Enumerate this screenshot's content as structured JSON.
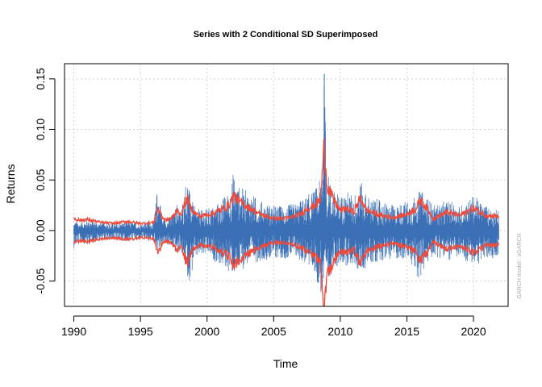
{
  "chart_data": {
    "type": "line",
    "title": "Series with 2 Conditional SD Superimposed",
    "xlabel": "Time",
    "ylabel": "Returns",
    "note": "GARCH model : sGARCH",
    "xlim": [
      1989.3,
      2022.6
    ],
    "ylim": [
      -0.075,
      0.165
    ],
    "x_ticks": [
      1990,
      1995,
      2000,
      2005,
      2010,
      2015,
      2020
    ],
    "x_tick_labels": [
      "1990",
      "1995",
      "2000",
      "2005",
      "2010",
      "2015",
      "2020"
    ],
    "y_ticks": [
      -0.05,
      0.0,
      0.05,
      0.1,
      0.15
    ],
    "y_tick_labels": [
      "-0.05",
      "0.00",
      "0.05",
      "0.10",
      "0.15"
    ],
    "grid": true,
    "x_range": [
      1990.0,
      2021.9
    ],
    "series": [
      {
        "role": "returns",
        "color": "#3b6fb6",
        "envelope": [
          [
            1990.0,
            0.01
          ],
          [
            1990.5,
            0.008
          ],
          [
            1991.0,
            0.012
          ],
          [
            1992.0,
            0.008
          ],
          [
            1993.0,
            0.007
          ],
          [
            1994.0,
            0.009
          ],
          [
            1995.0,
            0.007
          ],
          [
            1996.0,
            0.009
          ],
          [
            1996.3,
            0.047
          ],
          [
            1996.7,
            0.012
          ],
          [
            1997.0,
            0.012
          ],
          [
            1997.5,
            0.018
          ],
          [
            1997.8,
            0.03
          ],
          [
            1998.0,
            0.018
          ],
          [
            1998.5,
            0.058
          ],
          [
            1998.7,
            0.038
          ],
          [
            1999.0,
            0.025
          ],
          [
            1999.5,
            0.02
          ],
          [
            2000.0,
            0.022
          ],
          [
            2000.5,
            0.025
          ],
          [
            2001.0,
            0.03
          ],
          [
            2001.7,
            0.04
          ],
          [
            2002.0,
            0.061
          ],
          [
            2002.3,
            0.045
          ],
          [
            2003.0,
            0.04
          ],
          [
            2003.5,
            0.035
          ],
          [
            2004.0,
            0.03
          ],
          [
            2005.0,
            0.025
          ],
          [
            2006.0,
            0.025
          ],
          [
            2007.0,
            0.03
          ],
          [
            2007.5,
            0.035
          ],
          [
            2008.0,
            0.04
          ],
          [
            2008.5,
            0.05
          ],
          [
            2008.8,
            0.155
          ],
          [
            2009.0,
            0.06
          ],
          [
            2009.5,
            0.04
          ],
          [
            2010.0,
            0.035
          ],
          [
            2010.5,
            0.04
          ],
          [
            2011.0,
            0.035
          ],
          [
            2011.5,
            0.05
          ],
          [
            2012.0,
            0.035
          ],
          [
            2013.0,
            0.03
          ],
          [
            2014.0,
            0.025
          ],
          [
            2015.0,
            0.03
          ],
          [
            2015.7,
            0.035
          ],
          [
            2016.0,
            0.04
          ],
          [
            2016.5,
            0.035
          ],
          [
            2017.0,
            0.025
          ],
          [
            2018.0,
            0.03
          ],
          [
            2019.0,
            0.025
          ],
          [
            2020.0,
            0.035
          ],
          [
            2020.5,
            0.03
          ],
          [
            2021.0,
            0.025
          ],
          [
            2021.9,
            0.02
          ]
        ],
        "neg_envelope": [
          [
            1990.0,
            -0.018
          ],
          [
            1990.5,
            -0.012
          ],
          [
            1991.0,
            -0.014
          ],
          [
            1992.0,
            -0.01
          ],
          [
            1993.0,
            -0.009
          ],
          [
            1994.0,
            -0.011
          ],
          [
            1995.0,
            -0.009
          ],
          [
            1996.0,
            -0.012
          ],
          [
            1996.3,
            -0.02
          ],
          [
            1997.0,
            -0.014
          ],
          [
            1997.8,
            -0.025
          ],
          [
            1998.0,
            -0.02
          ],
          [
            1998.6,
            -0.05
          ],
          [
            1998.8,
            -0.05
          ],
          [
            1999.0,
            -0.03
          ],
          [
            2000.0,
            -0.025
          ],
          [
            2000.5,
            -0.03
          ],
          [
            2001.0,
            -0.035
          ],
          [
            2002.0,
            -0.045
          ],
          [
            2002.5,
            -0.04
          ],
          [
            2003.0,
            -0.035
          ],
          [
            2004.0,
            -0.03
          ],
          [
            2005.0,
            -0.028
          ],
          [
            2006.0,
            -0.028
          ],
          [
            2007.0,
            -0.03
          ],
          [
            2008.0,
            -0.04
          ],
          [
            2008.8,
            -0.075
          ],
          [
            2009.0,
            -0.05
          ],
          [
            2009.5,
            -0.04
          ],
          [
            2010.0,
            -0.035
          ],
          [
            2011.0,
            -0.035
          ],
          [
            2011.6,
            -0.045
          ],
          [
            2012.0,
            -0.035
          ],
          [
            2013.0,
            -0.03
          ],
          [
            2014.0,
            -0.028
          ],
          [
            2015.0,
            -0.03
          ],
          [
            2016.0,
            -0.05
          ],
          [
            2016.5,
            -0.035
          ],
          [
            2017.0,
            -0.025
          ],
          [
            2018.0,
            -0.03
          ],
          [
            2019.0,
            -0.028
          ],
          [
            2020.0,
            -0.035
          ],
          [
            2021.0,
            -0.03
          ],
          [
            2021.9,
            -0.025
          ]
        ]
      },
      {
        "role": "plus_minus_2_conditional_sd",
        "color": "#f04a3a",
        "values": [
          [
            1990.0,
            0.012
          ],
          [
            1990.5,
            0.01
          ],
          [
            1991.0,
            0.011
          ],
          [
            1992.0,
            0.008
          ],
          [
            1993.0,
            0.007
          ],
          [
            1994.0,
            0.009
          ],
          [
            1995.0,
            0.007
          ],
          [
            1996.0,
            0.008
          ],
          [
            1996.3,
            0.022
          ],
          [
            1996.7,
            0.012
          ],
          [
            1997.0,
            0.01
          ],
          [
            1997.5,
            0.014
          ],
          [
            1997.8,
            0.022
          ],
          [
            1998.0,
            0.014
          ],
          [
            1998.5,
            0.032
          ],
          [
            1998.7,
            0.025
          ],
          [
            1999.0,
            0.018
          ],
          [
            1999.5,
            0.014
          ],
          [
            2000.0,
            0.016
          ],
          [
            2000.5,
            0.017
          ],
          [
            2001.0,
            0.02
          ],
          [
            2001.7,
            0.026
          ],
          [
            2002.0,
            0.035
          ],
          [
            2002.3,
            0.03
          ],
          [
            2003.0,
            0.024
          ],
          [
            2003.5,
            0.02
          ],
          [
            2004.0,
            0.016
          ],
          [
            2005.0,
            0.012
          ],
          [
            2006.0,
            0.012
          ],
          [
            2007.0,
            0.016
          ],
          [
            2007.5,
            0.022
          ],
          [
            2008.0,
            0.024
          ],
          [
            2008.5,
            0.03
          ],
          [
            2008.8,
            0.084
          ],
          [
            2009.0,
            0.045
          ],
          [
            2009.5,
            0.03
          ],
          [
            2010.0,
            0.02
          ],
          [
            2010.5,
            0.022
          ],
          [
            2011.0,
            0.018
          ],
          [
            2011.5,
            0.032
          ],
          [
            2012.0,
            0.02
          ],
          [
            2013.0,
            0.015
          ],
          [
            2014.0,
            0.013
          ],
          [
            2015.0,
            0.016
          ],
          [
            2015.7,
            0.022
          ],
          [
            2016.0,
            0.03
          ],
          [
            2016.5,
            0.022
          ],
          [
            2017.0,
            0.012
          ],
          [
            2018.0,
            0.018
          ],
          [
            2019.0,
            0.015
          ],
          [
            2020.0,
            0.022
          ],
          [
            2020.5,
            0.018
          ],
          [
            2021.0,
            0.015
          ],
          [
            2021.9,
            0.014
          ]
        ]
      }
    ]
  }
}
